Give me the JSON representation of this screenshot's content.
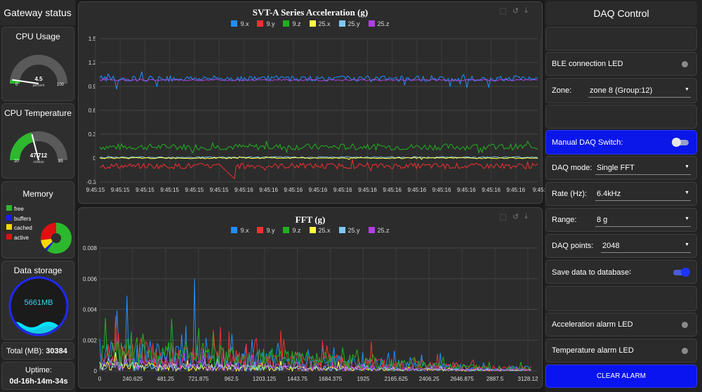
{
  "sidebar": {
    "title": "Gateway status",
    "cpu_usage": {
      "title": "CPU Usage",
      "value": "4.5",
      "unit": "percent",
      "min": "0",
      "max": "100",
      "level": 0.045
    },
    "cpu_temp": {
      "title": "CPU Temperature",
      "value": "47.712",
      "unit": "celsius",
      "min": "20",
      "max": "85",
      "level": 0.42
    },
    "memory": {
      "title": "Memory",
      "legend": [
        "free",
        "buffers",
        "cached",
        "active"
      ],
      "colors": [
        "#2db82d",
        "#1a1aff",
        "#f5d800",
        "#e01010"
      ],
      "fractions": [
        0.6,
        0.03,
        0.1,
        0.27
      ]
    },
    "storage": {
      "title": "Data storage",
      "value": "5661MB"
    },
    "total_label": "Total (MB):",
    "total_value": "30384",
    "uptime_label": "Uptime:",
    "uptime_value": "0d-16h-14m-34s"
  },
  "series_names": [
    "9.x",
    "9.y",
    "9.z",
    "25.x",
    "25.y",
    "25.z"
  ],
  "series_colors": [
    "#1e8fff",
    "#f03030",
    "#20b020",
    "#ffff40",
    "#7ec8f0",
    "#b040e0"
  ],
  "chart_data": [
    {
      "type": "line",
      "title": "SVT-A Series Acceleration (g)",
      "ylim": [
        -0.3,
        1.5
      ],
      "yticks": [
        "1.5",
        "1.2",
        "0.9",
        "0.6",
        "0.3",
        "0",
        "-0.3"
      ],
      "x": [
        "9:45:15",
        "9:45:15",
        "9:45:15",
        "9:45:15",
        "9:45:15",
        "9:45:15",
        "9:45:16",
        "9:45:16",
        "9:45:16",
        "9:45:16",
        "9:45:16",
        "9:45:16",
        "9:45:16",
        "9:45:16",
        "9:45:16",
        "9:45:16",
        "9:45:16",
        "9:45:16",
        "9:45:1"
      ],
      "series": [
        {
          "name": "9.x",
          "mean": 1.0
        },
        {
          "name": "9.y",
          "mean": -0.1
        },
        {
          "name": "9.z",
          "mean": 0.14
        },
        {
          "name": "25.x",
          "mean": 0.0
        },
        {
          "name": "25.y",
          "mean": 0.01
        },
        {
          "name": "25.z",
          "mean": 0.98
        }
      ]
    },
    {
      "type": "line",
      "title": "FFT (g)",
      "ylim": [
        0,
        0.008
      ],
      "yticks": [
        "0.008",
        "0.006",
        "0.004",
        "0.002",
        "0"
      ],
      "x": [
        "0",
        "240.625",
        "481.25",
        "721.875",
        "962.5",
        "1203.125",
        "1443.75",
        "1684.375",
        "1925",
        "2165.625",
        "2406.25",
        "2646.875",
        "2887.5",
        "3128.12"
      ],
      "xlim": [
        0,
        3200
      ]
    }
  ],
  "daq": {
    "title": "DAQ Control",
    "ble_led": "BLE connection LED",
    "zone_label": "Zone:",
    "zone_value": "zone 8 (Group:12)",
    "manual_label": "Manual DAQ Switch:",
    "mode_label": "DAQ mode:",
    "mode_value": "Single FFT",
    "rate_label": "Rate (Hz):",
    "rate_value": "6.4kHz",
    "range_label": "Range:",
    "range_value": "8 g",
    "points_label": "DAQ points:",
    "points_value": "2048",
    "save_label": "Save data to database∶",
    "accel_led": "Acceleration alarm LED",
    "temp_led": "Temperature alarm LED",
    "clear_label": "CLEAR ALARM"
  }
}
